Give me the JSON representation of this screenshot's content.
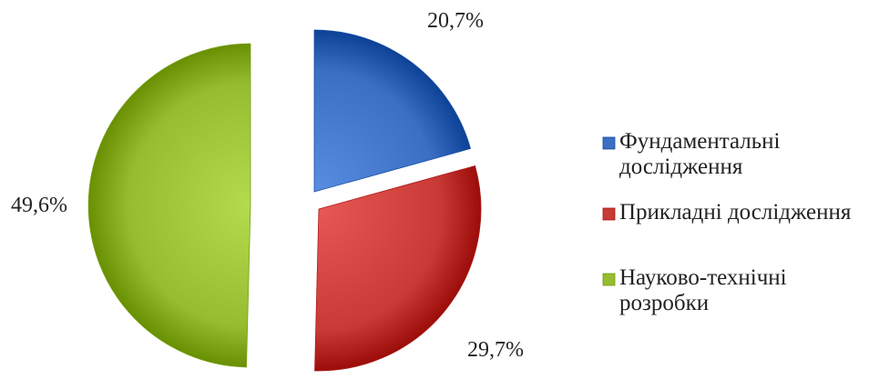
{
  "chart_data": {
    "type": "pie",
    "exploded": true,
    "three_d_shading": true,
    "legend_position": "right",
    "slices": [
      {
        "label": "Фундаментальні дослідження",
        "value": 20.7,
        "display": "20,7%",
        "color": "#3a6fc4",
        "legend_lines": [
          "Фундаментальні",
          "дослідження"
        ]
      },
      {
        "label": "Прикладні дослідження",
        "value": 29.7,
        "display": "29,7%",
        "color": "#c93a36",
        "legend_lines": [
          "Прикладні дослідження"
        ]
      },
      {
        "label": "Науково-технічні розробки",
        "value": 49.6,
        "display": "49,6%",
        "color": "#95bd2f",
        "legend_lines": [
          "Науково-технічні",
          "розробки"
        ]
      }
    ]
  }
}
